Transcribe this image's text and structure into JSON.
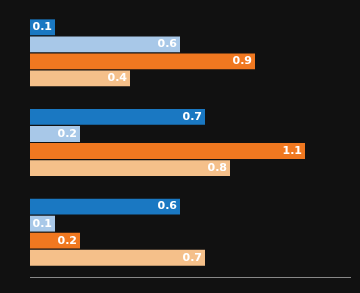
{
  "chart_data": {
    "type": "bar",
    "orientation": "horizontal",
    "categories": [
      null,
      null,
      null
    ],
    "series": [
      {
        "color": "#1a78c2",
        "values": [
          0.1,
          0.7,
          0.6
        ]
      },
      {
        "color": "#a8c8e8",
        "values": [
          0.6,
          0.2,
          0.1
        ]
      },
      {
        "color": "#f07820",
        "values": [
          0.9,
          1.1,
          0.2
        ]
      },
      {
        "color": "#f5c08a",
        "values": [
          0.4,
          0.8,
          0.7
        ]
      }
    ],
    "xlim": [
      0,
      1.28
    ],
    "data_labels": true,
    "tick_labels": false,
    "grid": false
  }
}
